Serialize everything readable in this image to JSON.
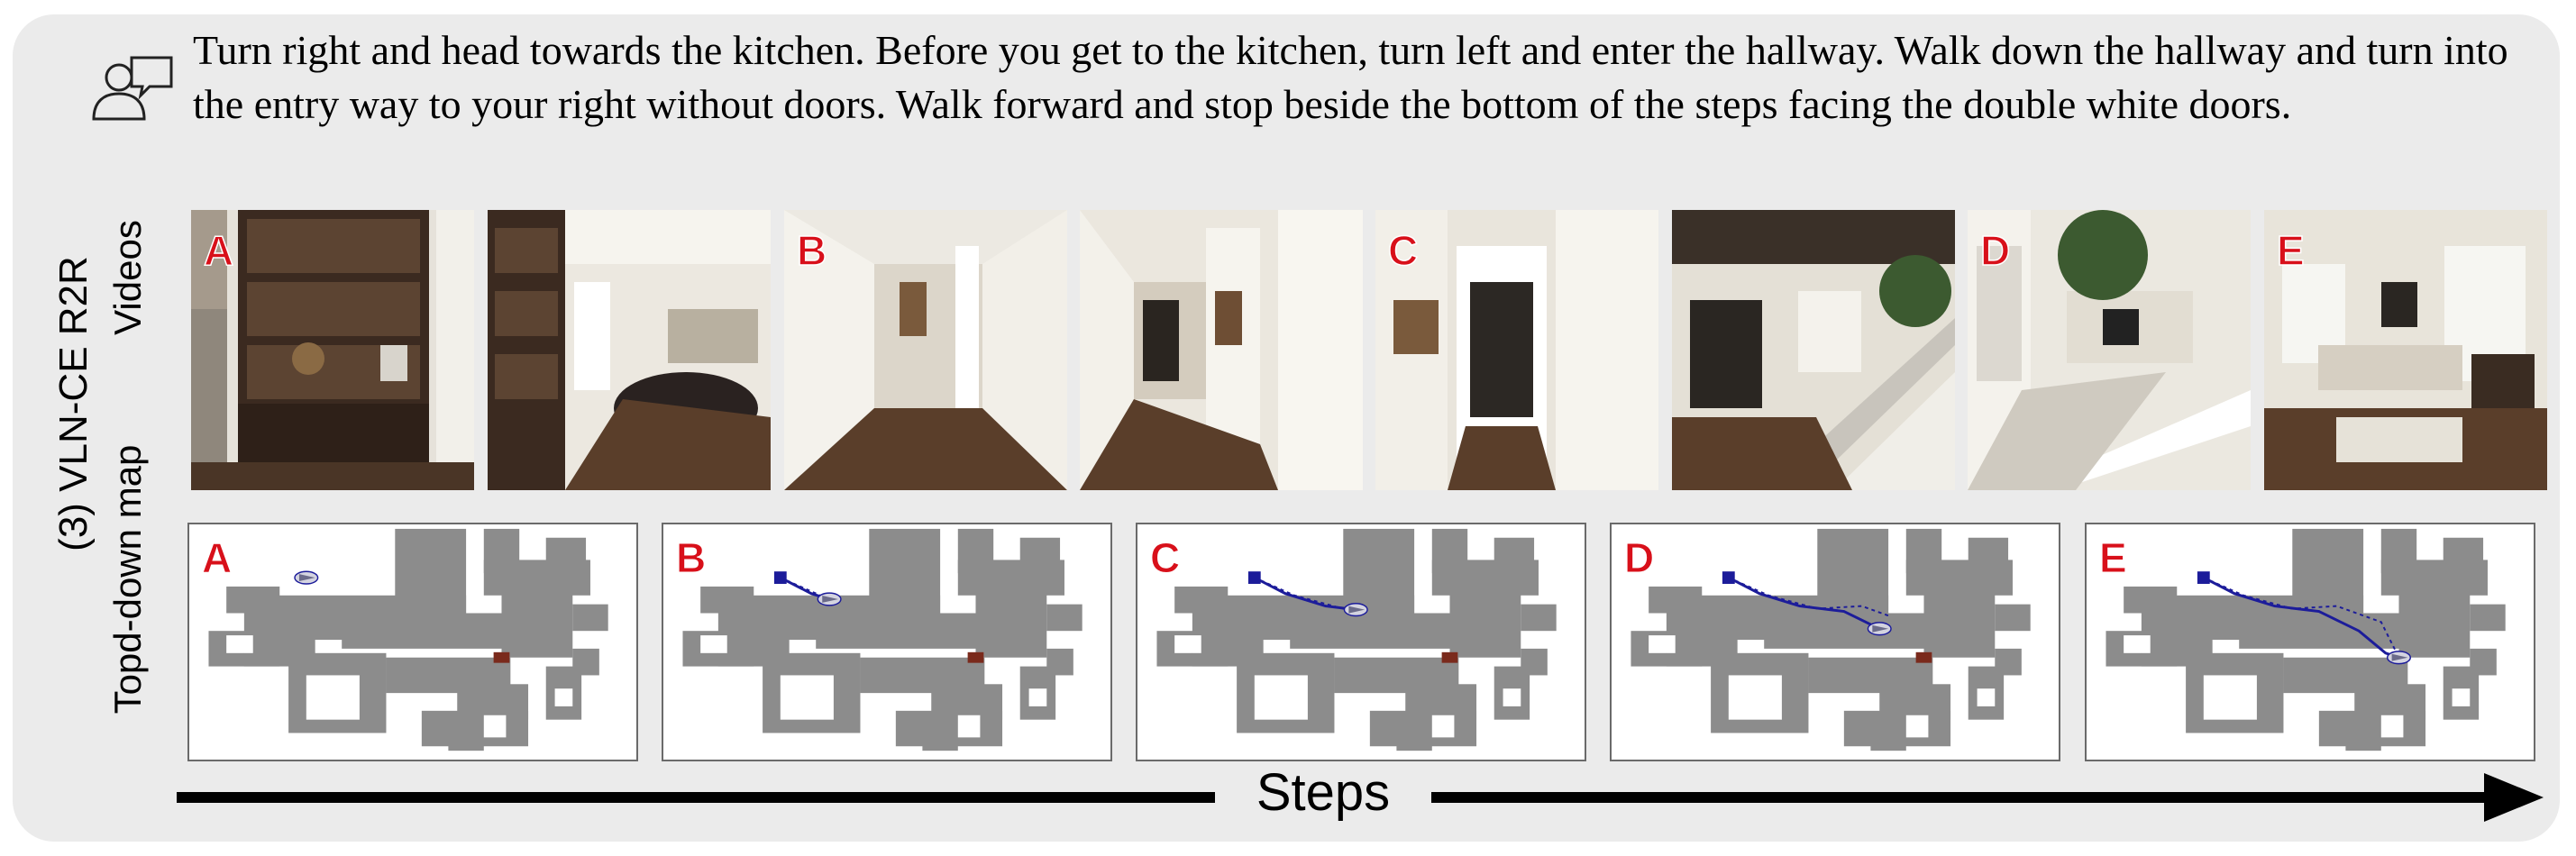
{
  "instruction": "Turn right and head towards the kitchen. Before you get to the kitchen, turn left and enter the hallway. Walk down the hallway and turn into the entry way to your right without doors. Walk forward and stop beside the bottom of the steps facing the double white doors.",
  "side_label": {
    "dataset": "(3) VLN-CE R2R",
    "videos_row": "Videos",
    "map_row": "Topd-down map"
  },
  "icons": {
    "chat": "people-chat-icon"
  },
  "frames": [
    {
      "letter": "A",
      "scene": "bookshelf"
    },
    {
      "letter": "",
      "scene": "kitchen"
    },
    {
      "letter": "B",
      "scene": "hallway"
    },
    {
      "letter": "",
      "scene": "hallway-door"
    },
    {
      "letter": "C",
      "scene": "doorway"
    },
    {
      "letter": "",
      "scene": "entry-stairs"
    },
    {
      "letter": "D",
      "scene": "stairs-living"
    },
    {
      "letter": "E",
      "scene": "living-room"
    }
  ],
  "maps": [
    {
      "letter": "A",
      "progress": 0.0
    },
    {
      "letter": "B",
      "progress": 0.25
    },
    {
      "letter": "C",
      "progress": 0.5
    },
    {
      "letter": "D",
      "progress": 0.75
    },
    {
      "letter": "E",
      "progress": 1.0
    }
  ],
  "steps_label": "Steps",
  "colors": {
    "panel_bg": "#ebebeb",
    "letter": "#d8101a",
    "floor": "#8c8c8c",
    "path": "#1c1c9a",
    "goal": "#7a2a1c"
  }
}
